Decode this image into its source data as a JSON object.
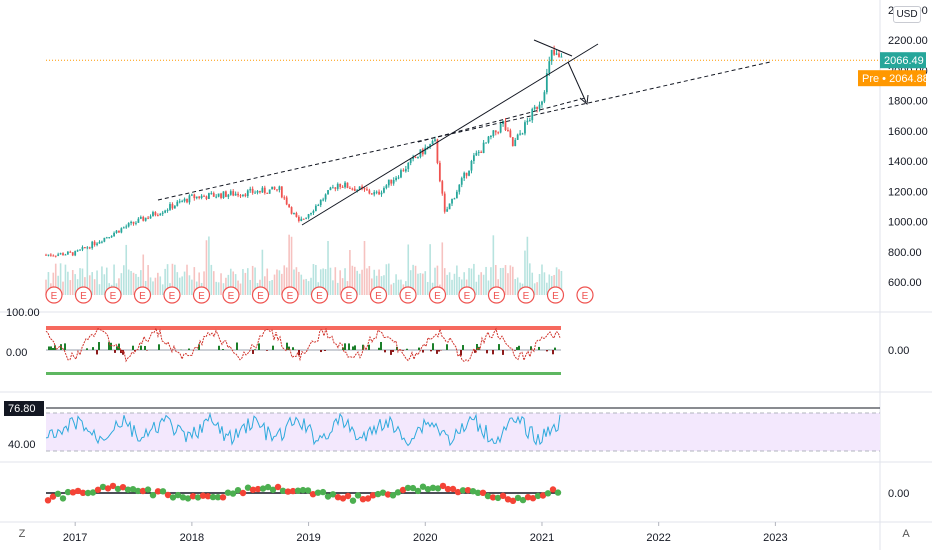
{
  "currency": "USD",
  "price_axis": {
    "labels": [
      "2400.00",
      "2200.00",
      "2000.00",
      "1800.00",
      "1600.00",
      "1400.00",
      "1200.00",
      "1000.00",
      "800.00",
      "600.00"
    ],
    "last_price": "2066.49",
    "pre_market_label": "Pre",
    "pre_market_price": "2064.88"
  },
  "oscillator_pane": {
    "labels": [
      "100.00",
      "0.00"
    ],
    "right_value": "0.00"
  },
  "rsi_pane": {
    "current_value": "76.80",
    "labels": [
      "40.00"
    ]
  },
  "momentum_pane": {
    "right_value": "0.00"
  },
  "earnings_marker_label": "E",
  "earnings_marker_count": 19,
  "time_axis": {
    "labels": [
      "2017",
      "2018",
      "2019",
      "2020",
      "2021",
      "2022",
      "2023"
    ]
  },
  "bottom_left_button": "Z",
  "bottom_right_button": "A",
  "colors": {
    "up": "#26a69a",
    "down": "#ef5350",
    "rsi_line": "#2eaadc",
    "rsi_band": "#f3e8fd",
    "last_price_tag": "#26a69a",
    "pre_market_tag": "#ff9800",
    "osc_upper_band": "#f44336",
    "osc_lower_band": "#4caf50",
    "earnings": "#ef5350"
  },
  "chart_data": {
    "type": "line",
    "title": "",
    "series": [
      {
        "name": "",
        "x": [
          "2016-10",
          "2017-01",
          "2017-06",
          "2018-01",
          "2018-10",
          "2018-12",
          "2019-04",
          "2019-08",
          "2020-01",
          "2020-02",
          "2020-03",
          "2020-06",
          "2020-09",
          "2020-10",
          "2021-01",
          "2021-02",
          "2021-03"
        ],
        "values": [
          780,
          790,
          960,
          1160,
          1210,
          990,
          1250,
          1180,
          1480,
          1520,
          1050,
          1420,
          1650,
          1500,
          1820,
          2110,
          2066
        ]
      }
    ],
    "ylim": [
      500,
      2400
    ],
    "xlim": [
      "2016-10",
      "2023-12"
    ]
  }
}
